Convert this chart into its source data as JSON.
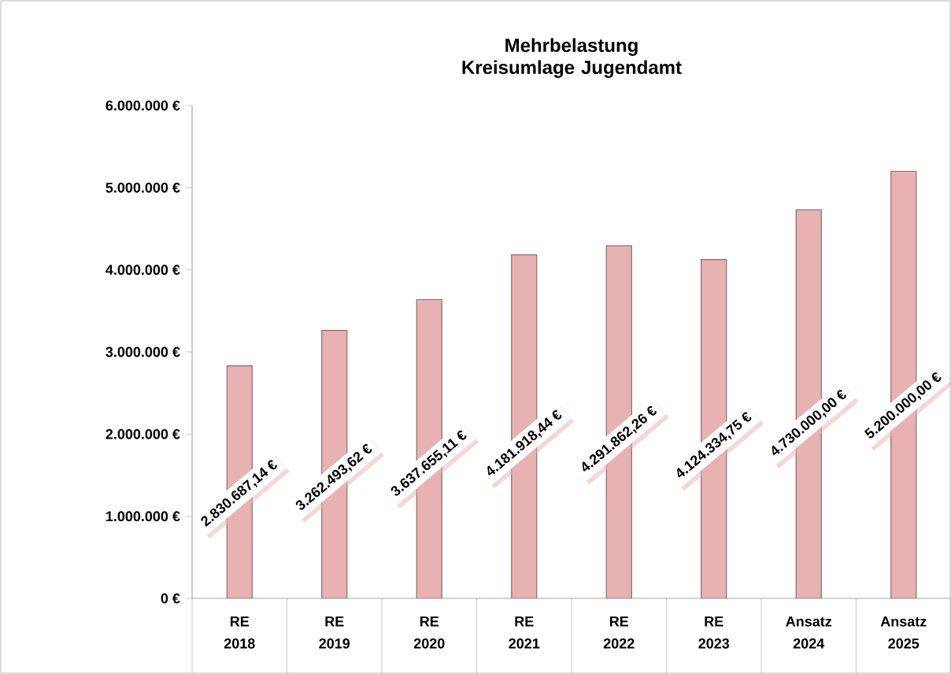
{
  "chart_data": {
    "type": "bar",
    "title": "Mehrbelastung Kreisumlage Jugendamt",
    "categories": [
      "RE 2018",
      "RE 2019",
      "RE 2020",
      "RE 2021",
      "RE 2022",
      "RE 2023",
      "Ansatz 2024",
      "Ansatz 2025"
    ],
    "values": [
      2830687.14,
      3262493.62,
      3637655.11,
      4181918.44,
      4291862.26,
      4124334.75,
      4730000.0,
      5200000.0
    ],
    "value_labels": [
      "2.830.687,14 €",
      "3.262.493,62 €",
      "3.637.655,11 €",
      "4.181.918,44 €",
      "4.291.862,26 €",
      "4.124.334,75 €",
      "4.730.000,00 €",
      "5.200.000,00 €"
    ],
    "color": "#e8b2b2",
    "ylim": [
      0,
      6000000
    ],
    "yticks": [
      {
        "value": 0,
        "label": "0 €"
      },
      {
        "value": 1000000,
        "label": "1.000.000 €"
      },
      {
        "value": 2000000,
        "label": "2.000.000 €"
      },
      {
        "value": 3000000,
        "label": "3.000.000 €"
      },
      {
        "value": 4000000,
        "label": "4.000.000 €"
      },
      {
        "value": 5000000,
        "label": "5.000.000 €"
      },
      {
        "value": 6000000,
        "label": "6.000.000 €"
      }
    ]
  }
}
